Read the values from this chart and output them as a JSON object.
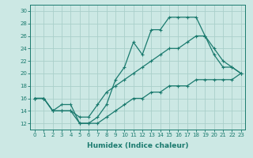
{
  "xlabel": "Humidex (Indice chaleur)",
  "background_color": "#cce8e4",
  "grid_color": "#aacfca",
  "line_color": "#1a7a6e",
  "x": [
    0,
    1,
    2,
    3,
    4,
    5,
    6,
    7,
    8,
    9,
    10,
    11,
    12,
    13,
    14,
    15,
    16,
    17,
    18,
    19,
    20,
    21,
    22,
    23
  ],
  "line1": [
    16,
    16,
    14,
    15,
    15,
    12,
    12,
    13,
    15,
    19,
    21,
    25,
    23,
    27,
    27,
    29,
    29,
    29,
    29,
    26,
    23,
    21,
    21,
    20
  ],
  "line2": [
    16,
    16,
    14,
    14,
    14,
    13,
    13,
    15,
    17,
    18,
    19,
    20,
    21,
    22,
    23,
    24,
    24,
    25,
    26,
    26,
    24,
    22,
    21,
    20
  ],
  "line3": [
    16,
    16,
    14,
    14,
    14,
    12,
    12,
    12,
    13,
    14,
    15,
    16,
    16,
    17,
    17,
    18,
    18,
    18,
    19,
    19,
    19,
    19,
    19,
    20
  ],
  "ylim": [
    11,
    31
  ],
  "xlim": [
    -0.5,
    23.5
  ],
  "yticks": [
    12,
    14,
    16,
    18,
    20,
    22,
    24,
    26,
    28,
    30
  ],
  "xticks": [
    0,
    1,
    2,
    3,
    4,
    5,
    6,
    7,
    8,
    9,
    10,
    11,
    12,
    13,
    14,
    15,
    16,
    17,
    18,
    19,
    20,
    21,
    22,
    23
  ],
  "markersize": 3,
  "linewidth": 0.9,
  "tick_fontsize": 5.0,
  "xlabel_fontsize": 6.5
}
